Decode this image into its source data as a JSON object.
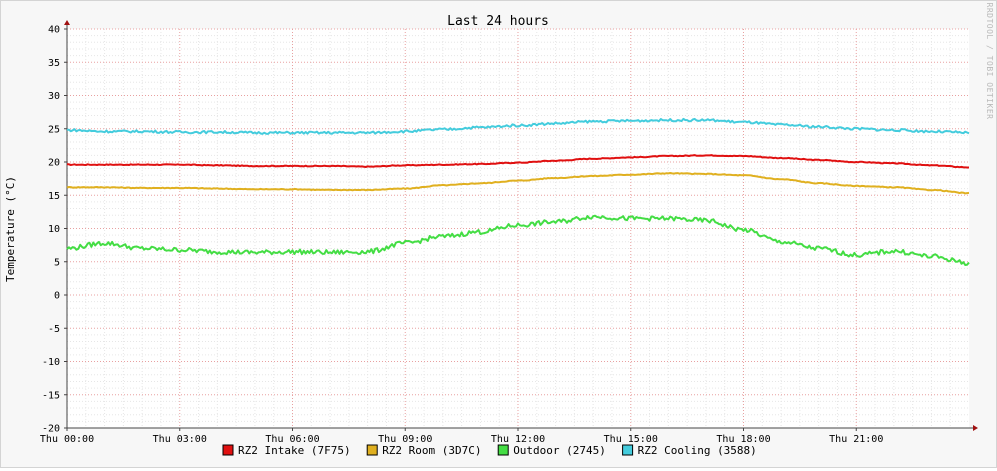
{
  "chart_data": {
    "type": "line",
    "title": "Last 24 hours",
    "ylabel": "Temperature (°C)",
    "watermark": "RRDTOOL / TOBI OETIKER",
    "ylim": [
      -20,
      40
    ],
    "xlim_hours": [
      0,
      24
    ],
    "grid": true,
    "legend_position": "bottom",
    "y_ticks": [
      "40",
      "35",
      "30",
      "25",
      "20",
      "15",
      "10",
      "5",
      "0",
      "-5",
      "-10",
      "-15",
      "-20"
    ],
    "x_ticks": [
      {
        "hour": 0,
        "label": "Thu 00:00"
      },
      {
        "hour": 3,
        "label": "Thu 03:00"
      },
      {
        "hour": 6,
        "label": "Thu 06:00"
      },
      {
        "hour": 9,
        "label": "Thu 09:00"
      },
      {
        "hour": 12,
        "label": "Thu 12:00"
      },
      {
        "hour": 15,
        "label": "Thu 15:00"
      },
      {
        "hour": 18,
        "label": "Thu 18:00"
      },
      {
        "hour": 21,
        "label": "Thu 21:00"
      }
    ],
    "x": [
      0,
      1,
      2,
      3,
      4,
      5,
      6,
      7,
      8,
      9,
      10,
      11,
      12,
      13,
      14,
      15,
      16,
      17,
      18,
      19,
      20,
      21,
      22,
      23,
      24
    ],
    "series": [
      {
        "name": "RZ2 Intake (7F75)",
        "color": "#e01010",
        "values": [
          19.6,
          19.6,
          19.6,
          19.6,
          19.5,
          19.4,
          19.4,
          19.4,
          19.3,
          19.5,
          19.6,
          19.7,
          19.9,
          20.2,
          20.5,
          20.7,
          20.9,
          21.0,
          20.9,
          20.6,
          20.3,
          20.0,
          19.8,
          19.5,
          19.2
        ]
      },
      {
        "name": "RZ2 Room (3D7C)",
        "color": "#e0b020",
        "values": [
          16.2,
          16.2,
          16.1,
          16.1,
          16.0,
          15.9,
          15.9,
          15.8,
          15.8,
          16.0,
          16.5,
          16.8,
          17.2,
          17.6,
          17.9,
          18.1,
          18.3,
          18.2,
          18.0,
          17.4,
          16.8,
          16.4,
          16.2,
          15.8,
          15.3
        ]
      },
      {
        "name": "Outdoor (2745)",
        "color": "#44dd44",
        "values": [
          7.0,
          7.8,
          7.0,
          6.8,
          6.5,
          6.4,
          6.5,
          6.4,
          6.5,
          7.8,
          8.8,
          9.5,
          10.5,
          11.0,
          11.8,
          11.5,
          11.5,
          11.2,
          9.8,
          8.0,
          7.0,
          6.0,
          6.6,
          5.8,
          4.8
        ]
      },
      {
        "name": "RZ2 Cooling (3588)",
        "color": "#44ccdd",
        "values": [
          24.8,
          24.6,
          24.6,
          24.5,
          24.5,
          24.4,
          24.4,
          24.4,
          24.4,
          24.6,
          24.9,
          25.2,
          25.5,
          25.8,
          26.1,
          26.2,
          26.3,
          26.3,
          26.0,
          25.6,
          25.3,
          25.0,
          24.8,
          24.6,
          24.4
        ]
      }
    ]
  }
}
